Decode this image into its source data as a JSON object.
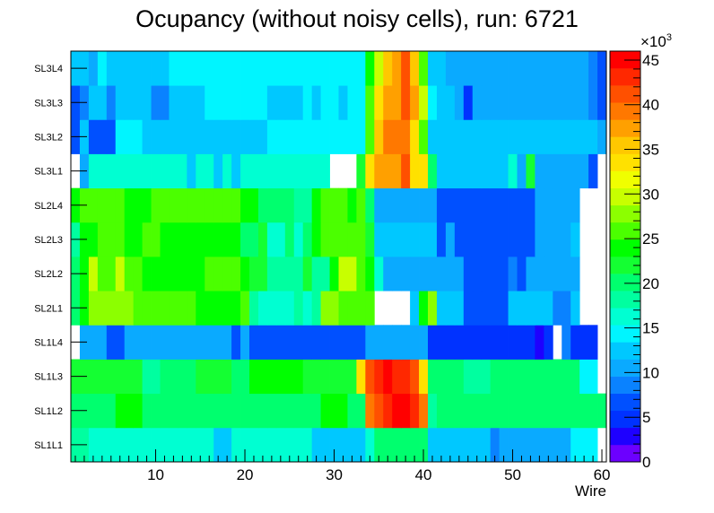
{
  "chart_data": {
    "type": "heatmap",
    "title": "Ocupancy (without noisy cells), run: 6721",
    "xlabel": "Wire",
    "ylabel": "",
    "xlim": [
      0.5,
      60.5
    ],
    "x_ticks": [
      10,
      20,
      30,
      40,
      50,
      60
    ],
    "y_categories": [
      "SL1L1",
      "SL1L2",
      "SL1L3",
      "SL1L4",
      "SL2L1",
      "SL2L2",
      "SL2L3",
      "SL2L4",
      "SL3L1",
      "SL3L2",
      "SL3L3",
      "SL3L4"
    ],
    "zlim": [
      0,
      46000
    ],
    "z_ticks": [
      0,
      5,
      10,
      15,
      20,
      25,
      30,
      35,
      40,
      45
    ],
    "z_exponent_label": "×10",
    "z_exponent_power": "3",
    "palette": [
      "#6c00ff",
      "#1e00ff",
      "#0032ff",
      "#0050ff",
      "#0a82ff",
      "#0aaaff",
      "#00c8ff",
      "#00f5ff",
      "#00ffd2",
      "#00ffa0",
      "#00ff6e",
      "#14ff32",
      "#00ff00",
      "#4bff00",
      "#8cff00",
      "#c8ff00",
      "#f0ff00",
      "#ffe100",
      "#ffc800",
      "#ffa000",
      "#ff7800",
      "#ff5000",
      "#ff2800",
      "#ff0000"
    ],
    "colors": {
      "frame": "#000000",
      "empty": "#ffffff"
    },
    "rows": [
      [
        19000,
        19000,
        17000,
        17000,
        17000,
        17000,
        17000,
        16000,
        16000,
        16000,
        16000,
        16000,
        16000,
        16000,
        16000,
        16000,
        13000,
        13000,
        16000,
        16000,
        16000,
        16000,
        16000,
        16000,
        16000,
        16000,
        16000,
        13000,
        13000,
        13000,
        13000,
        13000,
        13000,
        16000,
        20000,
        20000,
        20000,
        20000,
        20000,
        20000,
        13000,
        13000,
        12000,
        12000,
        12000,
        12000,
        12000,
        9000,
        11000,
        11000,
        11000,
        11000,
        11000,
        11000,
        11000,
        11000,
        14000,
        14000,
        14000,
        null
      ],
      [
        20000,
        20000,
        20000,
        20000,
        20000,
        24000,
        24000,
        24000,
        21000,
        21000,
        21000,
        21000,
        21000,
        21000,
        21000,
        21000,
        21000,
        21000,
        21000,
        21000,
        21000,
        21000,
        21000,
        21000,
        21000,
        21000,
        21000,
        21000,
        24000,
        24000,
        24000,
        21000,
        21000,
        40000,
        41000,
        43000,
        45000,
        45000,
        43000,
        40000,
        19000,
        21000,
        21000,
        21000,
        21000,
        21000,
        21000,
        21000,
        21000,
        21000,
        21000,
        21000,
        21000,
        21000,
        21000,
        21000,
        21000,
        21000,
        21000,
        21000
      ],
      [
        22000,
        22000,
        22000,
        22000,
        22000,
        22000,
        22000,
        22000,
        19000,
        19000,
        21000,
        21000,
        21000,
        21000,
        22000,
        22000,
        22000,
        22000,
        21000,
        21000,
        24000,
        24000,
        24000,
        24000,
        24000,
        24000,
        22000,
        22000,
        22000,
        22000,
        22000,
        22000,
        33000,
        42000,
        43000,
        45000,
        43000,
        43000,
        41000,
        33000,
        20000,
        20000,
        20000,
        20000,
        19000,
        19000,
        19000,
        21000,
        21000,
        21000,
        21000,
        21000,
        21000,
        21000,
        21000,
        21000,
        21000,
        15000,
        15000,
        null
      ],
      [
        null,
        10000,
        10000,
        10000,
        7000,
        7000,
        10000,
        10000,
        10000,
        10000,
        10000,
        10000,
        10000,
        10000,
        10000,
        10000,
        10000,
        10000,
        7000,
        10000,
        7000,
        7000,
        7000,
        7000,
        7000,
        7000,
        7000,
        7000,
        7000,
        7000,
        7000,
        7000,
        7000,
        10000,
        10000,
        10000,
        10000,
        10000,
        10000,
        10000,
        5000,
        5000,
        5000,
        5000,
        5000,
        5000,
        5000,
        5000,
        5000,
        5000,
        5000,
        5000,
        3000,
        5000,
        null,
        9000,
        5000,
        5000,
        5000,
        null
      ],
      [
        20000,
        24000,
        28000,
        28000,
        28000,
        28000,
        28000,
        26000,
        26000,
        26000,
        26000,
        26000,
        26000,
        26000,
        23000,
        23000,
        23000,
        23000,
        23000,
        26000,
        19000,
        17000,
        17000,
        17000,
        17000,
        19000,
        17000,
        19000,
        28000,
        28000,
        26000,
        26000,
        26000,
        26000,
        null,
        null,
        null,
        null,
        12000,
        23000,
        28000,
        12000,
        12000,
        12000,
        7000,
        7000,
        7000,
        7000,
        7000,
        12000,
        12000,
        12000,
        12000,
        12000,
        9000,
        9000,
        12000,
        null,
        null,
        null
      ],
      [
        21000,
        23000,
        29000,
        26000,
        26000,
        29000,
        26000,
        26000,
        23000,
        23000,
        24000,
        24000,
        24000,
        24000,
        24000,
        26000,
        26000,
        26000,
        26000,
        23000,
        22000,
        22000,
        19000,
        19000,
        19000,
        19000,
        22000,
        19000,
        19000,
        23000,
        29000,
        29000,
        26000,
        24000,
        16000,
        10000,
        10000,
        10000,
        10000,
        10000,
        10000,
        10000,
        10000,
        10000,
        7000,
        7000,
        7000,
        7000,
        7000,
        9000,
        7000,
        10000,
        10000,
        10000,
        10000,
        10000,
        10000,
        null,
        null,
        null
      ],
      [
        19000,
        23000,
        23000,
        26000,
        26000,
        26000,
        23000,
        23000,
        26000,
        26000,
        24000,
        24000,
        24000,
        24000,
        24000,
        24000,
        24000,
        24000,
        24000,
        20000,
        20000,
        22000,
        17000,
        17000,
        20000,
        17000,
        20000,
        24000,
        26000,
        26000,
        26000,
        26000,
        26000,
        22000,
        12000,
        12000,
        12000,
        12000,
        12000,
        12000,
        12000,
        7000,
        10000,
        7000,
        7000,
        7000,
        7000,
        7000,
        7000,
        7000,
        7000,
        7000,
        10000,
        10000,
        10000,
        10000,
        12000,
        null,
        null,
        null
      ],
      [
        23000,
        25000,
        25000,
        25000,
        25000,
        25000,
        23000,
        23000,
        23000,
        25000,
        25000,
        25000,
        25000,
        25000,
        25000,
        25000,
        25000,
        25000,
        25000,
        23000,
        23000,
        20000,
        20000,
        20000,
        20000,
        18000,
        18000,
        23000,
        26000,
        26000,
        26000,
        23000,
        26000,
        20000,
        10000,
        10000,
        10000,
        10000,
        10000,
        10000,
        10000,
        7000,
        7000,
        7000,
        7000,
        7000,
        7000,
        7000,
        7000,
        7000,
        7000,
        7000,
        10000,
        10000,
        10000,
        10000,
        10000,
        null,
        null,
        null
      ],
      [
        null,
        11000,
        16000,
        16000,
        16000,
        16000,
        16000,
        16000,
        16000,
        16000,
        16000,
        16000,
        16000,
        13000,
        16000,
        16000,
        13000,
        16000,
        13000,
        16000,
        16000,
        16000,
        16000,
        16000,
        16000,
        16000,
        16000,
        16000,
        16000,
        null,
        null,
        null,
        22000,
        33000,
        37000,
        37000,
        37000,
        42000,
        33000,
        33000,
        20000,
        13000,
        13000,
        13000,
        13000,
        13000,
        13000,
        13000,
        13000,
        16000,
        11000,
        22000,
        11000,
        11000,
        11000,
        11000,
        11000,
        11000,
        7000,
        null
      ],
      [
        7000,
        12000,
        7000,
        7000,
        7000,
        15000,
        15000,
        15000,
        13000,
        13000,
        13000,
        13000,
        13000,
        13000,
        13000,
        13000,
        13000,
        13000,
        13000,
        13000,
        13000,
        13000,
        15000,
        15000,
        15000,
        15000,
        15000,
        15000,
        15000,
        15000,
        15000,
        15000,
        15000,
        26000,
        35000,
        39000,
        39000,
        39000,
        33000,
        26000,
        13000,
        13000,
        13000,
        13000,
        13000,
        13000,
        13000,
        13000,
        13000,
        13000,
        13000,
        13000,
        13000,
        13000,
        13000,
        13000,
        13000,
        13000,
        13000,
        11000
      ],
      [
        7000,
        9000,
        13000,
        13000,
        9000,
        13000,
        13000,
        13000,
        13000,
        9000,
        9000,
        13000,
        13000,
        13000,
        13000,
        15000,
        15000,
        15000,
        15000,
        15000,
        15000,
        15000,
        13000,
        13000,
        13000,
        13000,
        15000,
        13000,
        15000,
        15000,
        13000,
        15000,
        15000,
        26000,
        33000,
        37000,
        37000,
        41000,
        37000,
        30000,
        15000,
        13000,
        13000,
        11000,
        4000,
        11000,
        11000,
        11000,
        11000,
        11000,
        11000,
        11000,
        11000,
        11000,
        11000,
        11000,
        11000,
        11000,
        9000,
        7000
      ],
      [
        13000,
        13000,
        11000,
        15000,
        13000,
        13000,
        13000,
        13000,
        13000,
        13000,
        13000,
        15000,
        15000,
        15000,
        15000,
        15000,
        15000,
        15000,
        15000,
        15000,
        15000,
        15000,
        15000,
        15000,
        15000,
        15000,
        15000,
        15000,
        15000,
        15000,
        15000,
        15000,
        15000,
        24000,
        30000,
        35000,
        37000,
        41000,
        35000,
        26000,
        13000,
        13000,
        11000,
        11000,
        11000,
        11000,
        11000,
        11000,
        11000,
        11000,
        11000,
        11000,
        11000,
        11000,
        11000,
        11000,
        11000,
        11000,
        9000,
        7000
      ]
    ]
  }
}
